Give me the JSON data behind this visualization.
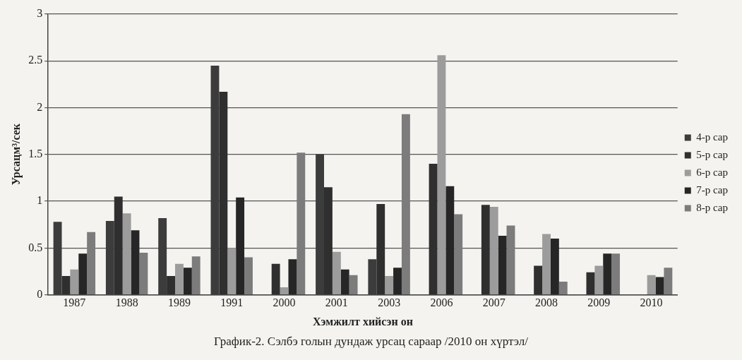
{
  "chart_data": {
    "type": "bar",
    "categories": [
      "1987",
      "1988",
      "1989",
      "1991",
      "2000",
      "2001",
      "2003",
      "2006",
      "2007",
      "2008",
      "2009",
      "2010"
    ],
    "series": [
      {
        "name": "4-р сар",
        "color": "#3c3c3c",
        "values": [
          0.78,
          0.79,
          0.82,
          2.45,
          null,
          1.5,
          0.38,
          null,
          null,
          null,
          null,
          null
        ]
      },
      {
        "name": "5-р сар",
        "color": "#2f2f2f",
        "values": [
          0.2,
          1.05,
          0.2,
          2.17,
          0.33,
          1.15,
          0.97,
          1.4,
          0.96,
          0.31,
          0.24,
          null
        ]
      },
      {
        "name": "6-р сар",
        "color": "#9c9c9c",
        "values": [
          0.27,
          0.87,
          0.33,
          0.5,
          0.08,
          0.46,
          0.2,
          2.56,
          0.94,
          0.65,
          0.31,
          0.21
        ]
      },
      {
        "name": "7-р сар",
        "color": "#262626",
        "values": [
          0.44,
          0.69,
          0.29,
          1.04,
          0.38,
          0.27,
          0.29,
          1.16,
          0.63,
          0.6,
          0.44,
          0.19
        ]
      },
      {
        "name": "8-р сар",
        "color": "#7c7c7c",
        "values": [
          0.67,
          0.45,
          0.41,
          0.4,
          1.52,
          0.21,
          1.93,
          0.86,
          0.74,
          0.14,
          0.44,
          0.29
        ]
      }
    ],
    "ylim": [
      0,
      3
    ],
    "yticks": [
      0,
      0.5,
      1,
      1.5,
      2,
      2.5,
      3
    ],
    "ylabel": "Урсацм³/сек",
    "xlabel": "Хэмжилт хийсэн он",
    "annotations": [
      "График-2. Сэлбэ голын дундаж урсац сараар /2010 он хүртэл/"
    ],
    "grid": "y",
    "legend": "right"
  }
}
